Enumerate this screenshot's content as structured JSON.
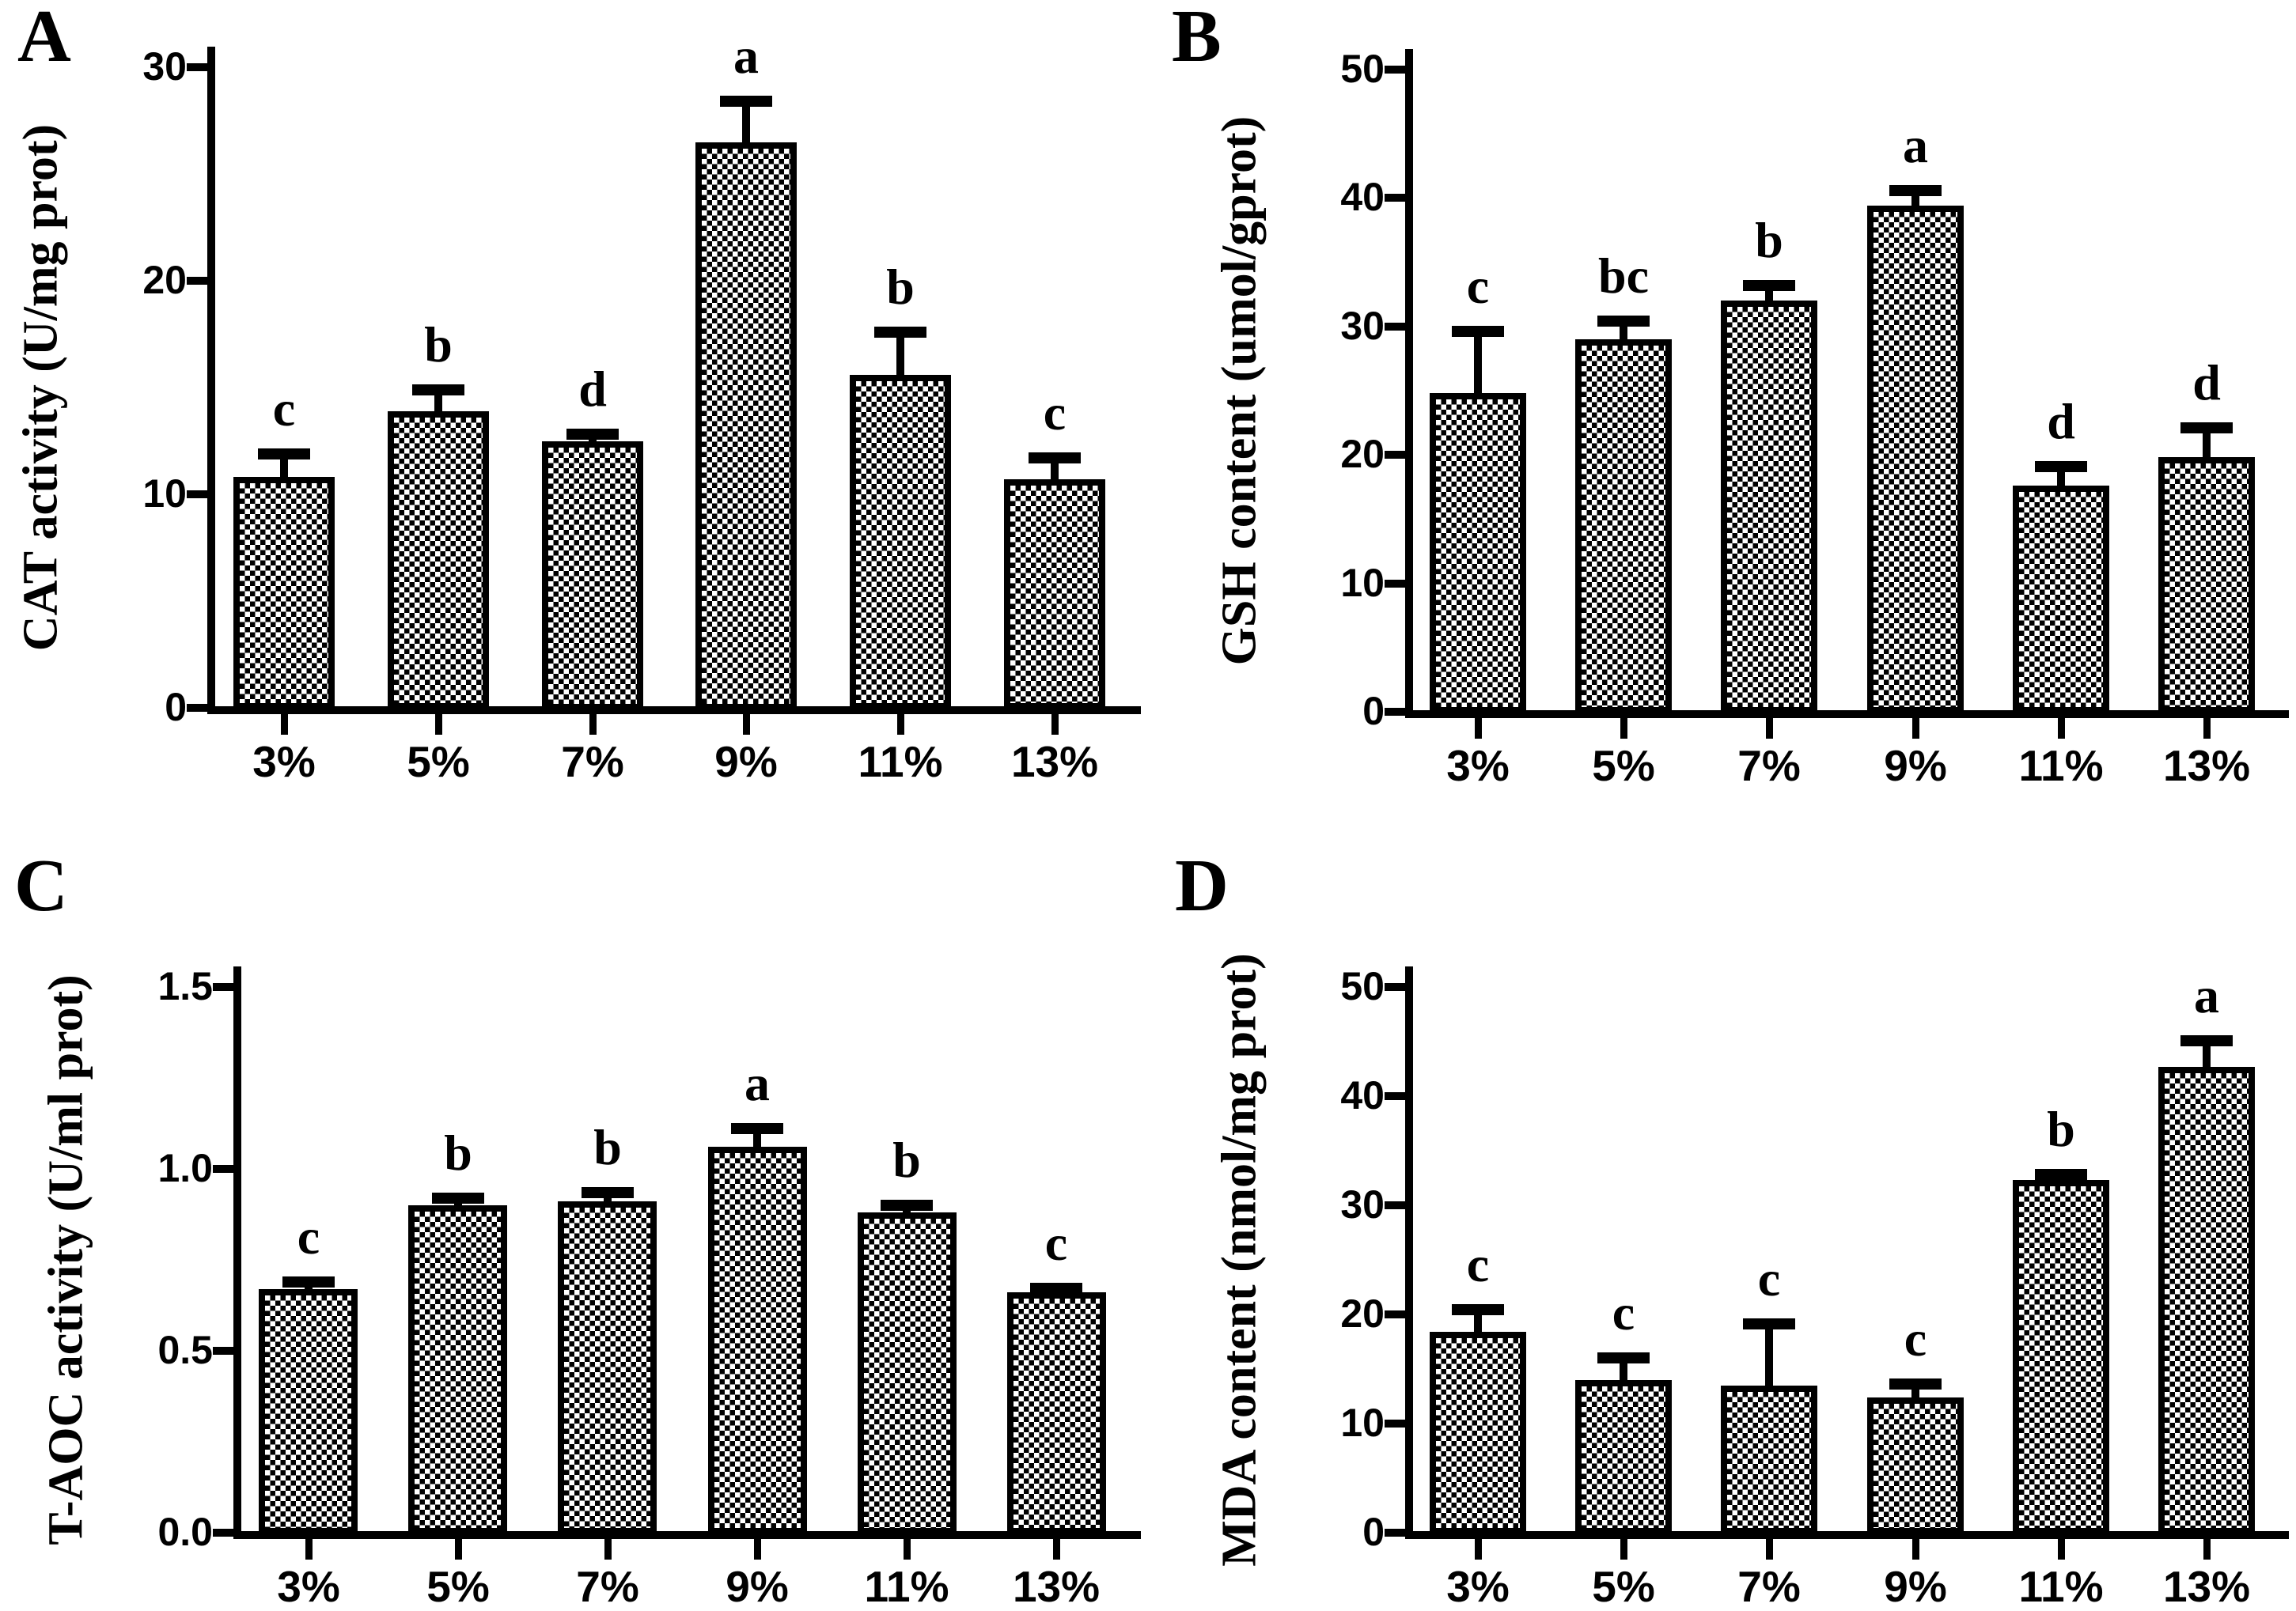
{
  "figure": {
    "background_color": "#ffffff",
    "ink_color": "#000000",
    "bar_pattern": "black-white checkerboard"
  },
  "chart_data": [
    {
      "type": "bar",
      "panel": "A",
      "ylabel": "CAT activity (U/mg prot)",
      "categories": [
        "3%",
        "5%",
        "7%",
        "9%",
        "11%",
        "13%"
      ],
      "values": [
        10.8,
        13.9,
        12.5,
        26.5,
        15.6,
        10.7
      ],
      "errors": [
        1.1,
        1.0,
        0.3,
        1.9,
        2.0,
        1.0
      ],
      "sig_letters": [
        "c",
        "b",
        "d",
        "a",
        "b",
        "c"
      ],
      "ylim": [
        0,
        30
      ],
      "yticks": [
        0,
        10,
        20,
        30
      ],
      "ytick_labels": [
        "0",
        "10",
        "20",
        "30"
      ],
      "grid": false,
      "legend": false
    },
    {
      "type": "bar",
      "panel": "B",
      "ylabel": "GSH content (umol/gprot)",
      "categories": [
        "3%",
        "5%",
        "7%",
        "9%",
        "11%",
        "13%"
      ],
      "values": [
        24.8,
        29.0,
        32.0,
        39.4,
        17.6,
        19.8
      ],
      "errors": [
        4.8,
        1.4,
        1.2,
        1.2,
        1.5,
        2.3
      ],
      "sig_letters": [
        "c",
        "bc",
        "b",
        "a",
        "d",
        "d"
      ],
      "ylim": [
        0,
        50
      ],
      "yticks": [
        0,
        10,
        20,
        30,
        40,
        50
      ],
      "ytick_labels": [
        "0",
        "10",
        "20",
        "30",
        "40",
        "50"
      ],
      "grid": false,
      "legend": false
    },
    {
      "type": "bar",
      "panel": "C",
      "ylabel": "T-AOC activity (U/ml prot)",
      "categories": [
        "3%",
        "5%",
        "7%",
        "9%",
        "11%",
        "13%"
      ],
      "values": [
        0.67,
        0.9,
        0.91,
        1.06,
        0.88,
        0.66
      ],
      "errors": [
        0.02,
        0.02,
        0.025,
        0.05,
        0.02,
        0.012
      ],
      "sig_letters": [
        "c",
        "b",
        "b",
        "a",
        "b",
        "c"
      ],
      "ylim": [
        0,
        1.5
      ],
      "yticks": [
        0,
        0.5,
        1.0,
        1.5
      ],
      "ytick_labels": [
        "0.0",
        "0.5",
        "1.0",
        "1.5"
      ],
      "grid": false,
      "legend": false
    },
    {
      "type": "bar",
      "panel": "D",
      "ylabel": "MDA content (nmol/mg prot)",
      "categories": [
        "3%",
        "5%",
        "7%",
        "9%",
        "11%",
        "13%"
      ],
      "values": [
        18.4,
        14.0,
        13.5,
        12.4,
        32.3,
        42.7
      ],
      "errors": [
        2.0,
        2.0,
        5.6,
        1.2,
        0.5,
        2.4
      ],
      "sig_letters": [
        "c",
        "c",
        "c",
        "c",
        "b",
        "a"
      ],
      "ylim": [
        0,
        50
      ],
      "yticks": [
        0,
        10,
        20,
        30,
        40,
        50
      ],
      "ytick_labels": [
        "0",
        "10",
        "20",
        "30",
        "40",
        "50"
      ],
      "grid": false,
      "legend": false
    }
  ]
}
